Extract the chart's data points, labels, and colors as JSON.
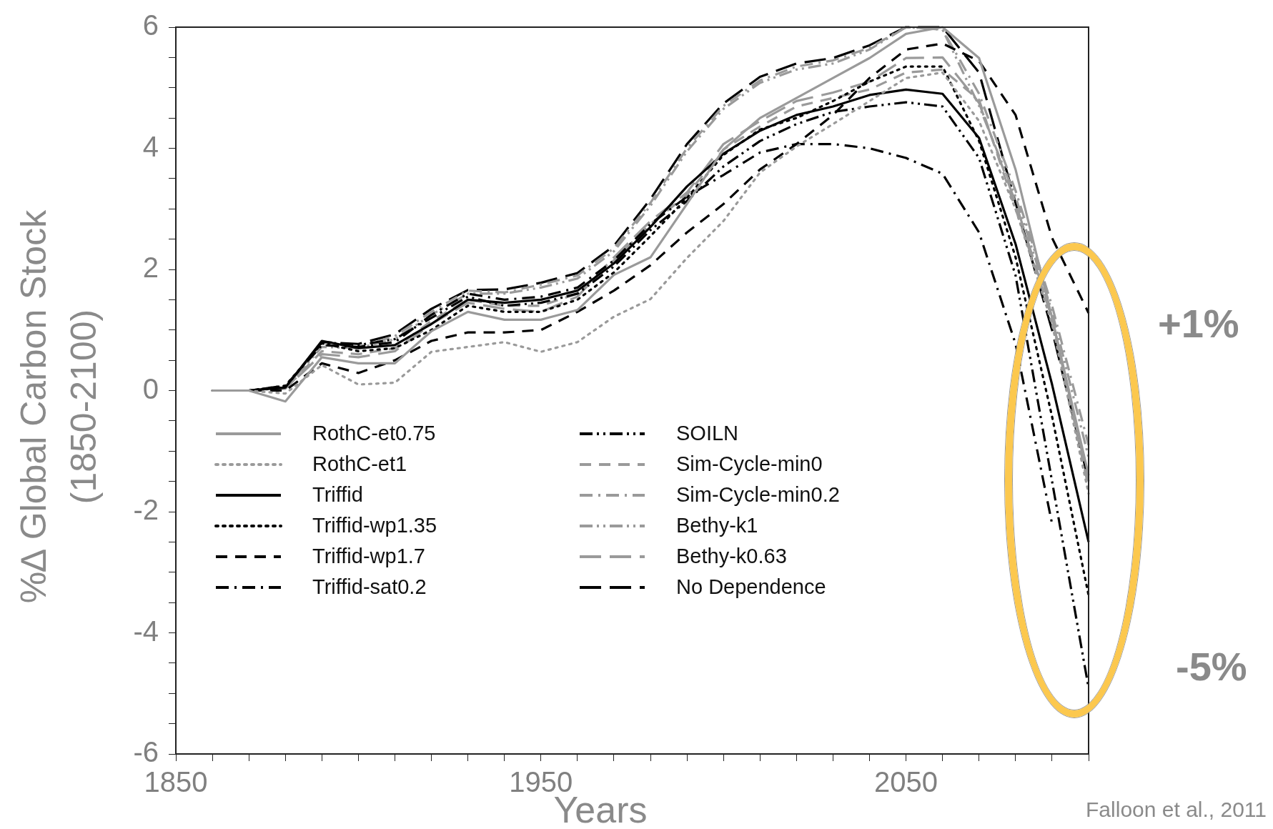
{
  "chart_data": {
    "type": "line",
    "xlabel": "Years",
    "ylabel": "%∆ Global Carbon Stock\n(1850-2100)",
    "annotations": [
      "+1%",
      "-5%",
      "Falloon et al., 2011"
    ],
    "x": [
      1860,
      1870,
      1880,
      1890,
      1900,
      1910,
      1920,
      1930,
      1940,
      1950,
      1960,
      1970,
      1980,
      1990,
      2000,
      2010,
      2020,
      2030,
      2040,
      2050,
      2060,
      2070,
      2080,
      2090,
      2100
    ],
    "xlim": [
      1850,
      2100
    ],
    "xticks": [
      1850,
      {
        "value": 1860,
        "label": null
      },
      {
        "value": 1870,
        "label": null
      },
      {
        "value": 1880,
        "label": null
      },
      {
        "value": 1890,
        "label": null
      },
      {
        "value": 1900,
        "label": null
      },
      {
        "value": 1910,
        "label": null
      },
      {
        "value": 1920,
        "label": null
      },
      {
        "value": 1930,
        "label": null
      },
      {
        "value": 1940,
        "label": null
      },
      1950,
      {
        "value": 1960,
        "label": null
      },
      {
        "value": 1970,
        "label": null
      },
      {
        "value": 1980,
        "label": null
      },
      {
        "value": 1990,
        "label": null
      },
      {
        "value": 2000,
        "label": null
      },
      {
        "value": 2010,
        "label": null
      },
      {
        "value": 2020,
        "label": null
      },
      {
        "value": 2030,
        "label": null
      },
      {
        "value": 2040,
        "label": null
      },
      2050,
      {
        "value": 2060,
        "label": null
      },
      {
        "value": 2070,
        "label": null
      },
      {
        "value": 2080,
        "label": null
      },
      {
        "value": 2090,
        "label": null
      },
      {
        "value": 2100,
        "label": null
      }
    ],
    "ylim": [
      -6,
      6
    ],
    "yticks": [
      -6,
      {
        "value": -5.5,
        "label": null
      },
      {
        "value": -5,
        "label": null
      },
      {
        "value": -4.5,
        "label": null
      },
      -4,
      {
        "value": -3.5,
        "label": null
      },
      {
        "value": -3,
        "label": null
      },
      {
        "value": -2.5,
        "label": null
      },
      -2,
      {
        "value": -1.5,
        "label": null
      },
      {
        "value": -1,
        "label": null
      },
      {
        "value": -0.5,
        "label": null
      },
      0,
      {
        "value": 0.5,
        "label": null
      },
      {
        "value": 1,
        "label": null
      },
      {
        "value": 1.5,
        "label": null
      },
      2,
      {
        "value": 2.5,
        "label": null
      },
      {
        "value": 3,
        "label": null
      },
      {
        "value": 3.5,
        "label": null
      },
      4,
      {
        "value": 4.5,
        "label": null
      },
      {
        "value": 5,
        "label": null
      },
      {
        "value": 5.5,
        "label": null
      },
      6
    ],
    "grid": false,
    "legend": "bottom left",
    "marker": "none",
    "series": [
      {
        "name": "RothC-et0.75",
        "color": "#9a9a9a",
        "line_style": "solid",
        "values": [
          0,
          0,
          -0.18,
          0.55,
          0.45,
          0.45,
          0.98,
          1.3,
          1.17,
          1.17,
          1.33,
          1.91,
          2.2,
          3.08,
          3.98,
          4.5,
          4.83,
          5.16,
          5.49,
          5.89,
          6.0,
          5.49,
          3.65,
          1.2,
          -1.4
        ]
      },
      {
        "name": "RothC-et1",
        "color": "#9a9a9a",
        "line_style": "dotted",
        "values": [
          0,
          0,
          -0.05,
          0.42,
          0.1,
          0.13,
          0.64,
          0.72,
          0.8,
          0.64,
          0.8,
          1.22,
          1.51,
          2.19,
          2.8,
          3.6,
          4.03,
          4.4,
          4.78,
          5.16,
          5.25,
          4.45,
          3.0,
          1.1,
          -1.7
        ]
      },
      {
        "name": "Triffid",
        "color": "#000000",
        "line_style": "solid",
        "values": [
          0,
          0,
          0.05,
          0.82,
          0.7,
          0.75,
          1.1,
          1.5,
          1.45,
          1.5,
          1.65,
          2.1,
          2.7,
          3.37,
          3.91,
          4.29,
          4.55,
          4.69,
          4.88,
          4.97,
          4.9,
          4.17,
          2.42,
          0.1,
          -2.5
        ]
      },
      {
        "name": "Triffid-wp1.35",
        "color": "#000000",
        "line_style": "dotted",
        "values": [
          0,
          0,
          0.08,
          0.78,
          0.65,
          0.7,
          1.0,
          1.4,
          1.3,
          1.3,
          1.5,
          1.95,
          2.55,
          3.18,
          3.89,
          4.31,
          4.5,
          4.78,
          5.1,
          5.35,
          5.35,
          4.12,
          2.2,
          -0.43,
          -3.38
        ]
      },
      {
        "name": "Triffid-wp1.7",
        "color": "#000000",
        "line_style": "dashed",
        "values": [
          0,
          0,
          0,
          0.45,
          0.29,
          0.5,
          0.82,
          0.96,
          0.96,
          1.0,
          1.3,
          1.65,
          2.07,
          2.61,
          3.08,
          3.65,
          4.07,
          4.55,
          5.16,
          5.63,
          5.73,
          5.44,
          4.55,
          2.52,
          1.28
        ]
      },
      {
        "name": "Triffid-sat0.2",
        "color": "#000000",
        "line_style": "dashdot",
        "values": [
          0,
          0,
          0.08,
          0.75,
          0.72,
          0.8,
          1.25,
          1.6,
          1.5,
          1.55,
          1.7,
          2.15,
          2.75,
          3.2,
          3.56,
          3.93,
          4.07,
          4.07,
          4.0,
          3.84,
          3.58,
          2.61,
          0.77,
          -2.2,
          null
        ]
      },
      {
        "name": "SOILN",
        "color": "#000000",
        "line_style": "dashdotdot",
        "values": [
          0,
          0,
          0.05,
          0.8,
          0.75,
          0.85,
          1.2,
          1.55,
          1.4,
          1.45,
          1.6,
          2.05,
          2.65,
          3.13,
          3.7,
          4.12,
          4.4,
          4.6,
          4.69,
          4.76,
          4.69,
          3.84,
          1.9,
          -1.5,
          -4.91
        ]
      },
      {
        "name": "Sim-Cycle-min0",
        "color": "#9a9a9a",
        "line_style": "dashed",
        "values": [
          0,
          0,
          0.03,
          0.65,
          0.6,
          0.7,
          1.15,
          1.5,
          1.4,
          1.4,
          1.6,
          2.15,
          2.75,
          3.23,
          3.98,
          4.36,
          4.69,
          4.83,
          4.97,
          5.25,
          5.3,
          4.8,
          3.0,
          1.2,
          -1.6
        ]
      },
      {
        "name": "Sim-Cycle-min0.2",
        "color": "#9a9a9a",
        "line_style": "dashdot",
        "values": [
          0,
          0,
          0.05,
          0.75,
          0.72,
          0.9,
          1.3,
          1.65,
          1.62,
          1.75,
          1.9,
          2.35,
          3.1,
          4.0,
          4.7,
          5.12,
          5.35,
          5.45,
          5.66,
          6.0,
          5.96,
          4.9,
          3.3,
          1.4,
          -0.9
        ]
      },
      {
        "name": "Bethy-k1",
        "color": "#9a9a9a",
        "line_style": "dashdotdot",
        "values": [
          0,
          0,
          0.04,
          0.72,
          0.7,
          0.85,
          1.25,
          1.6,
          1.6,
          1.7,
          1.85,
          2.3,
          3.05,
          3.95,
          4.65,
          5.08,
          5.3,
          5.4,
          5.63,
          6.0,
          5.96,
          4.7,
          3.2,
          1.3,
          -1.1
        ]
      },
      {
        "name": "Bethy-k0.63",
        "color": "#9a9a9a",
        "line_style": "longdash",
        "values": [
          0,
          0,
          0.03,
          0.6,
          0.55,
          0.65,
          1.1,
          1.45,
          1.35,
          1.3,
          1.55,
          2.2,
          2.8,
          3.27,
          4.07,
          4.45,
          4.78,
          4.92,
          5.1,
          5.49,
          5.5,
          4.75,
          3.1,
          1.2,
          -1.5
        ]
      },
      {
        "name": "No Dependence",
        "color": "#000000",
        "line_style": "longdash",
        "values": [
          0,
          0,
          0.05,
          0.8,
          0.77,
          0.93,
          1.35,
          1.66,
          1.67,
          1.78,
          1.94,
          2.39,
          3.16,
          4.07,
          4.74,
          5.18,
          5.4,
          5.49,
          5.7,
          6.0,
          6.0,
          5.25,
          3.1,
          1.0,
          -1.49
        ]
      }
    ]
  }
}
